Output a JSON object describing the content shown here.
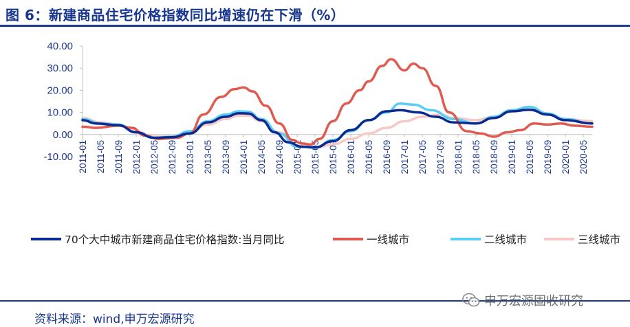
{
  "title": "图 6：新建商品住宅价格指数同比增速仍在下滑（%）",
  "source": "资料来源：wind,申万宏源研究",
  "watermark": "申万宏源固收研究",
  "watermark_icon": "wechat-icon",
  "chart_data": {
    "type": "line",
    "title": "",
    "xlabel": "",
    "ylabel": "",
    "ylim": [
      -10,
      40
    ],
    "yticks": [
      "40.00",
      "30.00",
      "20.00",
      "10.00",
      "0.00",
      "-10.00"
    ],
    "xticks": [
      "2011-01",
      "2011-05",
      "2011-09",
      "2012-01",
      "2012-05",
      "2012-09",
      "2013-01",
      "2013-05",
      "2013-09",
      "2014-01",
      "2014-05",
      "2014-09",
      "2015-01",
      "2015-05",
      "2015-09",
      "2016-01",
      "2016-05",
      "2016-09",
      "2017-01",
      "2017-05",
      "2017-09",
      "2018-01",
      "2018-05",
      "2018-09",
      "2019-01",
      "2019-05",
      "2019-09",
      "2020-01",
      "2020-05"
    ],
    "x_start": "2011-01",
    "x_end": "2020-07",
    "grid": false,
    "legend_position": "bottom",
    "series": [
      {
        "name": "70个大中城市新建商品住宅价格指数:当月同比",
        "color": "#0b2a8f",
        "width": 3.5,
        "points": [
          [
            "2011-01",
            6.5
          ],
          [
            "2011-04",
            5.0
          ],
          [
            "2011-09",
            4.2
          ],
          [
            "2012-01",
            1.0
          ],
          [
            "2012-05",
            -1.5
          ],
          [
            "2012-09",
            -1.2
          ],
          [
            "2013-01",
            0.5
          ],
          [
            "2013-05",
            5.5
          ],
          [
            "2013-09",
            8.0
          ],
          [
            "2013-12",
            9.6
          ],
          [
            "2014-02",
            9.5
          ],
          [
            "2014-05",
            6.5
          ],
          [
            "2014-08",
            1.0
          ],
          [
            "2014-11",
            -3.5
          ],
          [
            "2015-02",
            -5.5
          ],
          [
            "2015-05",
            -5.8
          ],
          [
            "2015-09",
            -3.0
          ],
          [
            "2016-01",
            2.0
          ],
          [
            "2016-05",
            6.5
          ],
          [
            "2016-09",
            10.5
          ],
          [
            "2016-12",
            11.0
          ],
          [
            "2017-04",
            10.0
          ],
          [
            "2017-08",
            8.0
          ],
          [
            "2017-12",
            5.5
          ],
          [
            "2018-05",
            5.0
          ],
          [
            "2018-09",
            7.5
          ],
          [
            "2019-01",
            10.5
          ],
          [
            "2019-05",
            11.2
          ],
          [
            "2019-09",
            9.0
          ],
          [
            "2020-01",
            6.5
          ],
          [
            "2020-07",
            5.0
          ]
        ]
      },
      {
        "name": "一线城市",
        "color": "#e05a50",
        "width": 3.5,
        "points": [
          [
            "2011-01",
            3.5
          ],
          [
            "2011-04",
            3.0
          ],
          [
            "2011-09",
            4.0
          ],
          [
            "2011-12",
            3.0
          ],
          [
            "2012-03",
            -0.5
          ],
          [
            "2012-06",
            -2.0
          ],
          [
            "2012-10",
            -1.5
          ],
          [
            "2013-01",
            0.5
          ],
          [
            "2013-04",
            9.0
          ],
          [
            "2013-08",
            17.0
          ],
          [
            "2013-11",
            20.5
          ],
          [
            "2014-01",
            21.3
          ],
          [
            "2014-03",
            19.5
          ],
          [
            "2014-06",
            13.0
          ],
          [
            "2014-09",
            5.0
          ],
          [
            "2014-12",
            -2.5
          ],
          [
            "2015-02",
            -4.0
          ],
          [
            "2015-04",
            -4.5
          ],
          [
            "2015-06",
            -2.0
          ],
          [
            "2015-09",
            6.0
          ],
          [
            "2015-12",
            14.0
          ],
          [
            "2016-03",
            20.0
          ],
          [
            "2016-05",
            24.0
          ],
          [
            "2016-08",
            31.0
          ],
          [
            "2016-10",
            34.0
          ],
          [
            "2017-01",
            29.0
          ],
          [
            "2017-03",
            32.0
          ],
          [
            "2017-05",
            30.0
          ],
          [
            "2017-08",
            22.0
          ],
          [
            "2017-11",
            10.0
          ],
          [
            "2018-03",
            1.5
          ],
          [
            "2018-06",
            0.5
          ],
          [
            "2018-09",
            -1.0
          ],
          [
            "2018-12",
            1.0
          ],
          [
            "2019-03",
            2.0
          ],
          [
            "2019-06",
            5.0
          ],
          [
            "2019-09",
            4.5
          ],
          [
            "2019-12",
            5.0
          ],
          [
            "2020-03",
            4.0
          ],
          [
            "2020-07",
            3.5
          ]
        ]
      },
      {
        "name": "二线城市",
        "color": "#5ccdf2",
        "width": 3.5,
        "points": [
          [
            "2011-01",
            7.0
          ],
          [
            "2011-05",
            5.0
          ],
          [
            "2011-09",
            4.5
          ],
          [
            "2012-01",
            1.0
          ],
          [
            "2012-05",
            -1.5
          ],
          [
            "2012-09",
            -1.0
          ],
          [
            "2013-01",
            1.5
          ],
          [
            "2013-05",
            6.0
          ],
          [
            "2013-09",
            9.0
          ],
          [
            "2013-12",
            10.5
          ],
          [
            "2014-02",
            10.3
          ],
          [
            "2014-05",
            7.0
          ],
          [
            "2014-09",
            0.5
          ],
          [
            "2015-01",
            -5.5
          ],
          [
            "2015-05",
            -6.0
          ],
          [
            "2015-09",
            -2.5
          ],
          [
            "2016-01",
            1.5
          ],
          [
            "2016-05",
            6.5
          ],
          [
            "2016-09",
            10.0
          ],
          [
            "2016-12",
            14.0
          ],
          [
            "2017-03",
            13.5
          ],
          [
            "2017-07",
            11.0
          ],
          [
            "2017-12",
            7.0
          ],
          [
            "2018-05",
            5.0
          ],
          [
            "2018-09",
            8.0
          ],
          [
            "2019-01",
            11.0
          ],
          [
            "2019-05",
            12.5
          ],
          [
            "2019-09",
            9.5
          ],
          [
            "2020-01",
            7.0
          ],
          [
            "2020-07",
            5.0
          ]
        ]
      },
      {
        "name": "三线城市",
        "color": "#f7c9c6",
        "width": 3.5,
        "points": [
          [
            "2011-01",
            7.5
          ],
          [
            "2011-05",
            5.5
          ],
          [
            "2011-09",
            4.5
          ],
          [
            "2012-01",
            1.5
          ],
          [
            "2012-05",
            -1.0
          ],
          [
            "2012-09",
            -0.8
          ],
          [
            "2013-01",
            1.0
          ],
          [
            "2013-05",
            4.5
          ],
          [
            "2013-09",
            7.0
          ],
          [
            "2013-12",
            8.5
          ],
          [
            "2014-02",
            8.5
          ],
          [
            "2014-05",
            6.0
          ],
          [
            "2014-09",
            1.0
          ],
          [
            "2015-01",
            -5.0
          ],
          [
            "2015-05",
            -6.0
          ],
          [
            "2015-09",
            -4.5
          ],
          [
            "2016-01",
            -2.0
          ],
          [
            "2016-05",
            0.5
          ],
          [
            "2016-09",
            3.0
          ],
          [
            "2017-01",
            6.0
          ],
          [
            "2017-05",
            8.0
          ],
          [
            "2017-09",
            9.0
          ],
          [
            "2017-12",
            7.5
          ],
          [
            "2018-05",
            6.5
          ],
          [
            "2018-09",
            8.0
          ],
          [
            "2019-01",
            10.5
          ],
          [
            "2019-05",
            11.0
          ],
          [
            "2019-09",
            9.5
          ],
          [
            "2020-01",
            7.0
          ],
          [
            "2020-07",
            6.0
          ]
        ]
      }
    ]
  }
}
